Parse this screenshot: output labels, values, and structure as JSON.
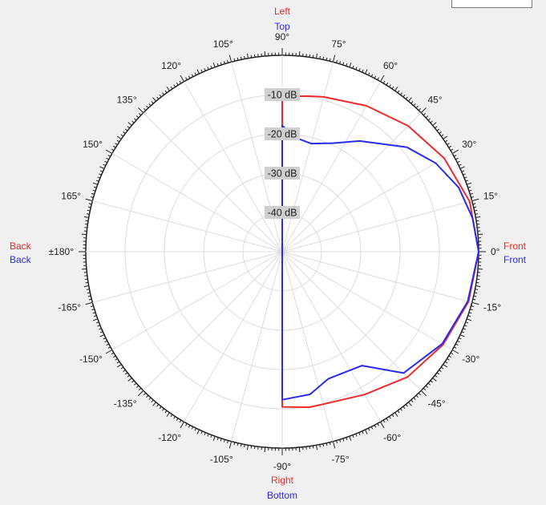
{
  "chart_data": {
    "type": "polar-line",
    "radial_axis": {
      "unit": "dB",
      "min": -50,
      "max": 0,
      "rings": [
        -10,
        -20,
        -30,
        -40
      ],
      "labels": [
        "-10 dB",
        "-20 dB",
        "-30 dB",
        "-40 dB"
      ]
    },
    "angle_ticks": [
      {
        "angle": 90,
        "label": "90°"
      },
      {
        "angle": 75,
        "label": "75°"
      },
      {
        "angle": 60,
        "label": "60°"
      },
      {
        "angle": 45,
        "label": "45°"
      },
      {
        "angle": 30,
        "label": "30°"
      },
      {
        "angle": 15,
        "label": "15°"
      },
      {
        "angle": 0,
        "label": "0°"
      },
      {
        "angle": -15,
        "label": "-15°"
      },
      {
        "angle": -30,
        "label": "-30°"
      },
      {
        "angle": -45,
        "label": "-45°"
      },
      {
        "angle": -60,
        "label": "-60°"
      },
      {
        "angle": -75,
        "label": "-75°"
      },
      {
        "angle": -90,
        "label": "-90°"
      },
      {
        "angle": -105,
        "label": "-105°"
      },
      {
        "angle": -120,
        "label": "-120°"
      },
      {
        "angle": -135,
        "label": "-135°"
      },
      {
        "angle": -150,
        "label": "-150°"
      },
      {
        "angle": -165,
        "label": "-165°"
      },
      {
        "angle": 180,
        "label": "±180°"
      },
      {
        "angle": 165,
        "label": "165°"
      },
      {
        "angle": 150,
        "label": "150°"
      },
      {
        "angle": 135,
        "label": "135°"
      },
      {
        "angle": 120,
        "label": "120°"
      },
      {
        "angle": 105,
        "label": "105°"
      }
    ],
    "direction_labels": {
      "top": [
        "Left",
        "Top"
      ],
      "bottom": [
        "Right",
        "Bottom"
      ],
      "left": [
        "Back",
        "Back"
      ],
      "right": [
        "Front",
        "Front"
      ]
    },
    "series": [
      {
        "color": "#ee2a2a",
        "points": [
          [
            0,
            0
          ],
          [
            15,
            -0.6
          ],
          [
            30,
            -2.4
          ],
          [
            45,
            -4.7
          ],
          [
            60,
            -7.1
          ],
          [
            75,
            -9.2
          ],
          [
            80,
            -9.8
          ],
          [
            90,
            -10.5
          ],
          [
            -90,
            -10.5
          ],
          [
            -80,
            -9.8
          ],
          [
            -75,
            -9.8
          ],
          [
            -60,
            -8.0
          ],
          [
            -45,
            -4.9
          ],
          [
            -30,
            -2.7
          ],
          [
            -15,
            -0.9
          ]
        ]
      },
      {
        "color": "#2a2aee",
        "points": [
          [
            0,
            0
          ],
          [
            10,
            -0.8
          ],
          [
            20,
            -2.2
          ],
          [
            30,
            -4.9
          ],
          [
            40,
            -8.6
          ],
          [
            55,
            -15.6
          ],
          [
            65,
            -19.5
          ],
          [
            75,
            -21.5
          ],
          [
            83,
            -20.8
          ],
          [
            90,
            -17.9
          ],
          [
            -90,
            -12.3
          ],
          [
            -79,
            -13.0
          ],
          [
            -70,
            -15.6
          ],
          [
            -55,
            -14.6
          ],
          [
            -45,
            -6.3
          ],
          [
            -30,
            -3.0
          ],
          [
            -15,
            -1.1
          ]
        ]
      }
    ]
  }
}
